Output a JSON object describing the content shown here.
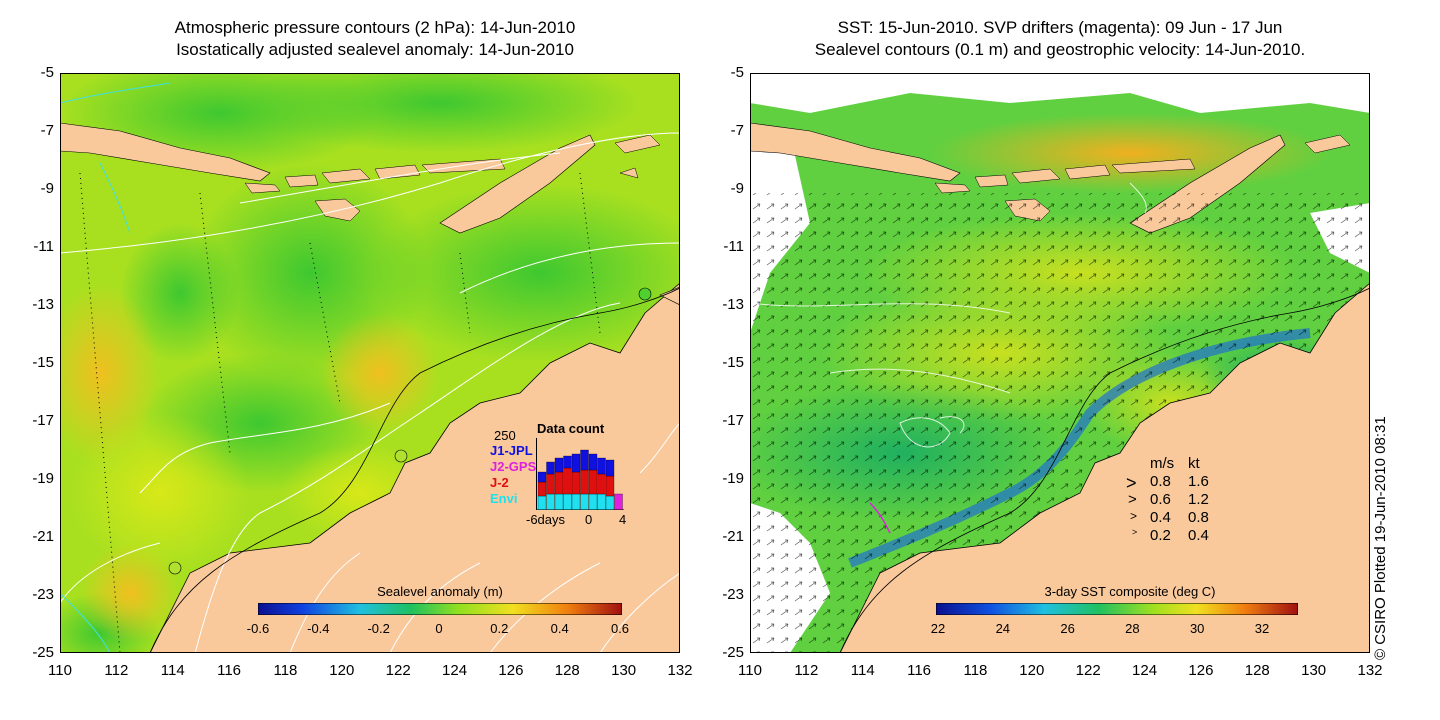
{
  "left_panel": {
    "title_line1": "Atmospheric pressure contours (2 hPa): 14-Jun-2010",
    "title_line2": "Isostatically adjusted sealevel anomaly: 14-Jun-2010",
    "y_ticks": [
      "-5",
      "-7",
      "-9",
      "-11",
      "-13",
      "-15",
      "-17",
      "-19",
      "-21",
      "-23",
      "-25"
    ],
    "x_ticks": [
      "110",
      "112",
      "114",
      "116",
      "118",
      "120",
      "122",
      "124",
      "126",
      "128",
      "130",
      "132"
    ],
    "colorbar_title": "Sealevel anomaly (m)",
    "colorbar_ticks": [
      "-0.6",
      "-0.4",
      "-0.2",
      "0",
      "0.2",
      "0.4",
      "0.6"
    ],
    "data_count": {
      "title": "Data count",
      "max_label": "250",
      "xlabel": "-6days",
      "x_ticks": [
        "0",
        "4"
      ],
      "legend": [
        {
          "name": "J1-JPL",
          "color": "#1010e0"
        },
        {
          "name": "J2-GPS",
          "color": "#e020e0"
        },
        {
          "name": "J-2",
          "color": "#e01010"
        },
        {
          "name": "Envi",
          "color": "#20e0f0"
        }
      ]
    }
  },
  "right_panel": {
    "title_line1": "SST: 15-Jun-2010. SVP drifters (magenta): 09 Jun - 17 Jun",
    "title_line2": "Sealevel contours (0.1 m) and geostrophic velocity: 14-Jun-2010.",
    "y_ticks": [
      "-5",
      "-7",
      "-9",
      "-11",
      "-13",
      "-15",
      "-17",
      "-19",
      "-21",
      "-23",
      "-25"
    ],
    "x_ticks": [
      "110",
      "112",
      "114",
      "116",
      "118",
      "120",
      "122",
      "124",
      "126",
      "128",
      "130",
      "132"
    ],
    "colorbar_title": "3-day SST composite (deg C)",
    "colorbar_ticks": [
      "22",
      "24",
      "26",
      "28",
      "30",
      "32"
    ],
    "velocity_legend": {
      "header_ms": "m/s",
      "header_kt": "kt",
      "rows": [
        {
          "ms": "0.8",
          "kt": "1.6"
        },
        {
          "ms": "0.6",
          "kt": "1.2"
        },
        {
          "ms": "0.4",
          "kt": "0.8"
        },
        {
          "ms": "0.2",
          "kt": "0.4"
        }
      ]
    }
  },
  "credit": "© CSIRO Plotted 19-Jun-2010 08:31",
  "colors": {
    "land": "#f9c89b",
    "ocean_green": "#55d030",
    "ocean_yellowgreen": "#a8e020",
    "ocean_yellow": "#d8e818"
  }
}
